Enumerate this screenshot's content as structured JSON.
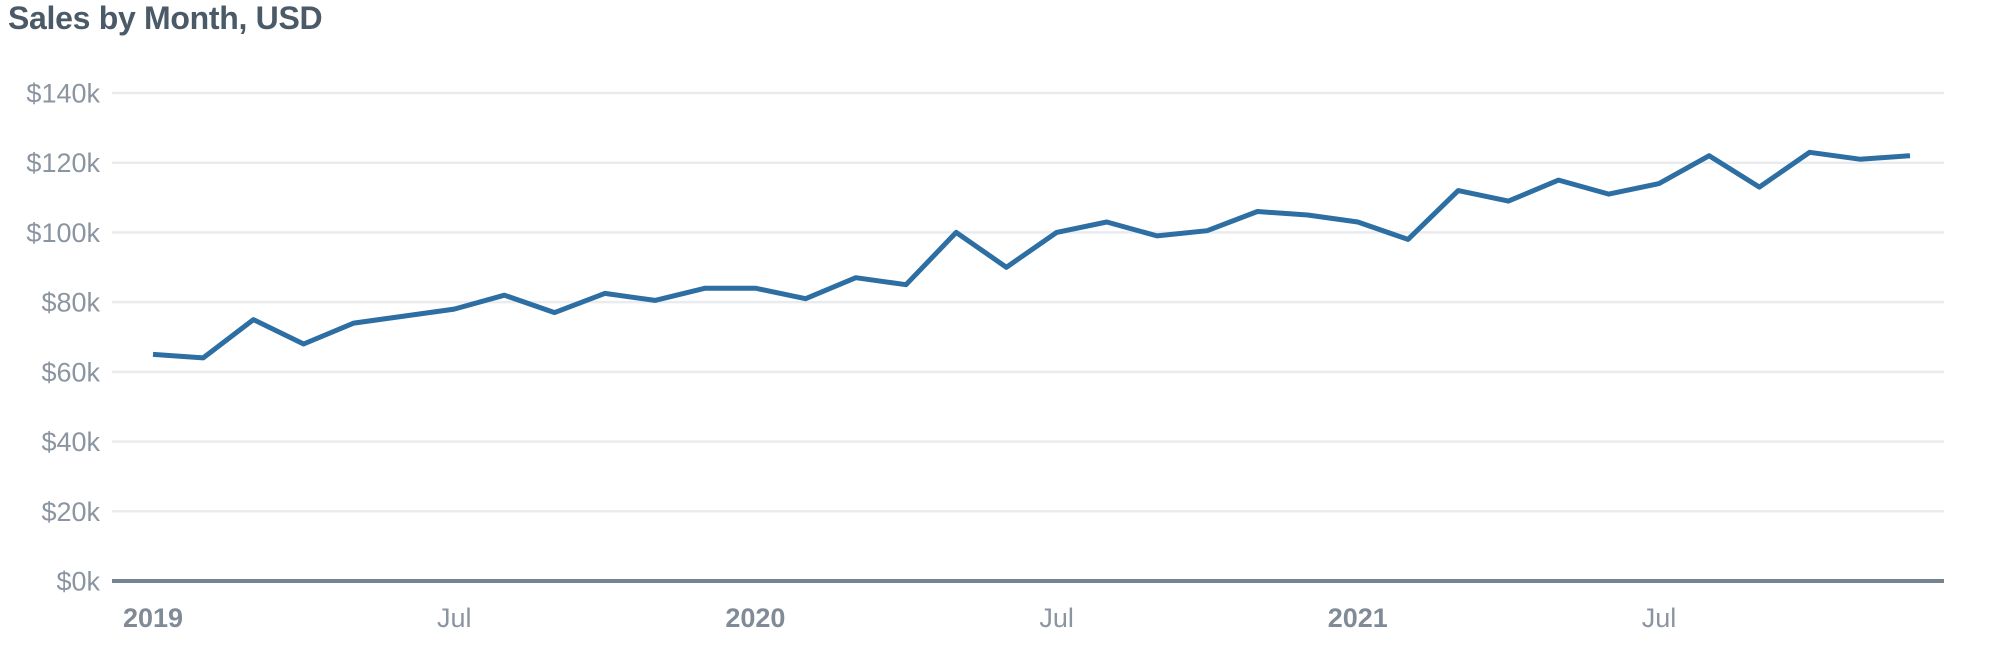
{
  "chart": {
    "title": "Sales by Month, USD"
  },
  "chart_data": {
    "type": "line",
    "title": "Sales by Month, USD",
    "unit": "USD, thousands",
    "series_name": "Sales",
    "categories": [
      "Jan 2019",
      "Feb 2019",
      "Mar 2019",
      "Apr 2019",
      "May 2019",
      "Jun 2019",
      "Jul 2019",
      "Aug 2019",
      "Sep 2019",
      "Oct 2019",
      "Nov 2019",
      "Dec 2019",
      "Jan 2020",
      "Feb 2020",
      "Mar 2020",
      "Apr 2020",
      "May 2020",
      "Jun 2020",
      "Jul 2020",
      "Aug 2020",
      "Sep 2020",
      "Oct 2020",
      "Nov 2020",
      "Dec 2020",
      "Jan 2021",
      "Feb 2021",
      "Mar 2021",
      "Apr 2021",
      "May 2021",
      "Jun 2021",
      "Jul 2021",
      "Aug 2021",
      "Sep 2021",
      "Oct 2021",
      "Nov 2021",
      "Dec 2021"
    ],
    "values": [
      65,
      64,
      75,
      68,
      74,
      76,
      78,
      82,
      77,
      82.5,
      80.5,
      84,
      84,
      81,
      87,
      85,
      100,
      90,
      100,
      103,
      99,
      100.5,
      106,
      105,
      103,
      98,
      112,
      109,
      115,
      111,
      114,
      122,
      113,
      123,
      121,
      122
    ],
    "xlabel": "",
    "ylabel": "",
    "ylim": [
      0,
      140
    ],
    "grid": true,
    "legend": false,
    "y_ticks": [
      {
        "value": 0,
        "label": "$0k"
      },
      {
        "value": 20,
        "label": "$20k"
      },
      {
        "value": 40,
        "label": "$40k"
      },
      {
        "value": 60,
        "label": "$60k"
      },
      {
        "value": 80,
        "label": "$80k"
      },
      {
        "value": 100,
        "label": "$100k"
      },
      {
        "value": 120,
        "label": "$120k"
      },
      {
        "value": 140,
        "label": "$140k"
      }
    ],
    "x_ticks": [
      {
        "monthIndex": 0,
        "label": "2019",
        "bold": true
      },
      {
        "monthIndex": 6,
        "label": "Jul",
        "bold": false
      },
      {
        "monthIndex": 12,
        "label": "2020",
        "bold": true
      },
      {
        "monthIndex": 18,
        "label": "Jul",
        "bold": false
      },
      {
        "monthIndex": 24,
        "label": "2021",
        "bold": true
      },
      {
        "monthIndex": 30,
        "label": "Jul",
        "bold": false
      }
    ],
    "colors": {
      "line": "#2d6ea3",
      "title": "#4a5a68",
      "tick_label": "#8b95a1",
      "year_tick_label": "#818b98",
      "gridline": "#e9ebef",
      "axis_line": "#76828f",
      "background": "#ffffff"
    }
  }
}
